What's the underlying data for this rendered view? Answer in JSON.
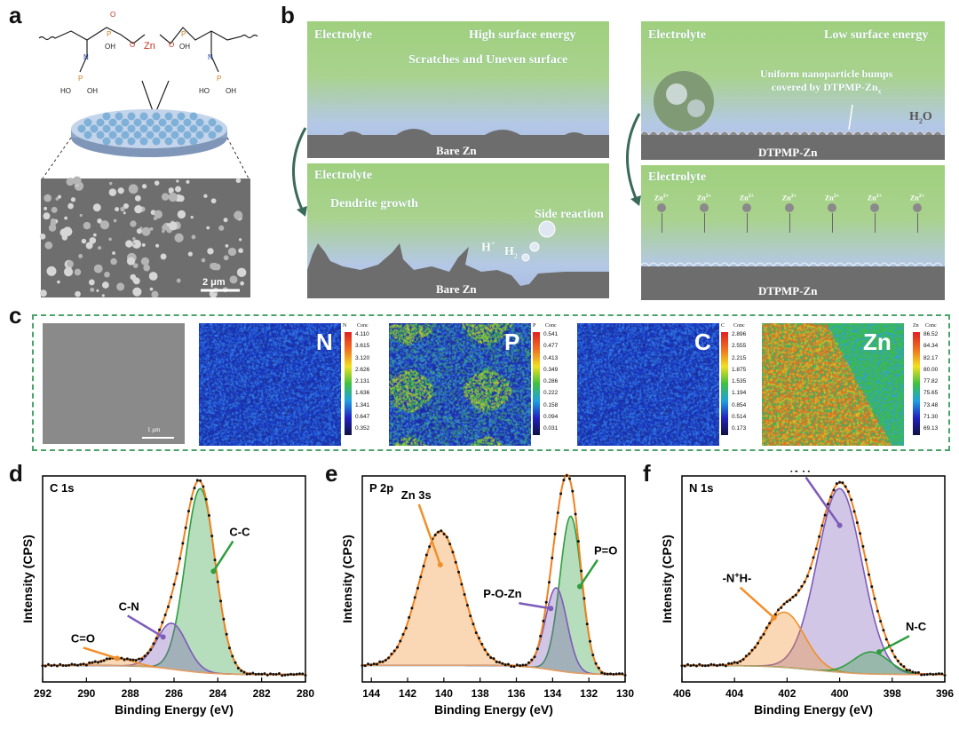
{
  "panels": {
    "a": "a",
    "b": "b",
    "c": "c",
    "d": "d",
    "e": "e",
    "f": "f"
  },
  "panel_a": {
    "molecule_labels": {
      "oh1": "OH",
      "o1": "O",
      "p1": "P",
      "n1": "N",
      "p2": "P",
      "oh2": "HO",
      "oh2b": "OH",
      "o2": "O",
      "zn": "Zn",
      "o3": "O",
      "p3": "P",
      "oh3": "OH",
      "n2": "N",
      "p4": "P",
      "oh4": "HO",
      "oh4b": "OH"
    },
    "scale_bar": "2 μm"
  },
  "panel_b": {
    "top_left": {
      "electrolyte": "Electrolyte",
      "energy": "High surface energy",
      "surface": "Scratches and Uneven surface",
      "substrate": "Bare Zn"
    },
    "bottom_left": {
      "electrolyte": "Electrolyte",
      "dendrite": "Dendrite growth",
      "side": "Side reaction",
      "h_plus": "H",
      "h_plus_sup": "+",
      "h2": "H",
      "h2_sub": "2",
      "substrate": "Bare Zn"
    },
    "top_right": {
      "electrolyte": "Electrolyte",
      "energy": "Low surface energy",
      "bumps_line1": "Uniform nanoparticle bumps",
      "bumps_line2": "covered by DTPMP-Zn",
      "bumps_sub": "x",
      "h2o": "H",
      "h2o_sub": "2",
      "h2o_o": "O",
      "substrate": "DTPMP-Zn"
    },
    "bottom_right": {
      "electrolyte": "Electrolyte",
      "ions": [
        "Zn",
        "Zn",
        "Zn",
        "Zn",
        "Zn",
        "Zn",
        "Zn"
      ],
      "ion_sup": "2+",
      "substrate": "DTPMP-Zn"
    }
  },
  "panel_c": {
    "scale_bar": "1 μm",
    "maps": [
      {
        "element": "N",
        "conc_label": "Conc",
        "cb_title": "N",
        "values": [
          "4.110",
          "3.615",
          "3.120",
          "2.626",
          "2.131",
          "1.636",
          "1.341",
          "0.647",
          "0.352"
        ]
      },
      {
        "element": "P",
        "conc_label": "Conc",
        "cb_title": "P",
        "values": [
          "0.541",
          "0.477",
          "0.413",
          "0.349",
          "0.286",
          "0.222",
          "0.158",
          "0.094",
          "0.031"
        ]
      },
      {
        "element": "C",
        "conc_label": "Conc",
        "cb_title": "C",
        "values": [
          "2.896",
          "2.555",
          "2.215",
          "1.875",
          "1.535",
          "1.194",
          "0.854",
          "0.514",
          "0.173"
        ]
      },
      {
        "element": "Zn",
        "conc_label": "Conc",
        "cb_title": "Zn",
        "values": [
          "86.52",
          "84.34",
          "82.17",
          "80.00",
          "77.82",
          "75.65",
          "73.48",
          "71.30",
          "69.13"
        ]
      }
    ]
  },
  "chart_data": [
    {
      "type": "line",
      "title": "C 1s",
      "xlabel": "Binding Energy (eV)",
      "ylabel": "Intensity (CPS)",
      "xlim": [
        292,
        280
      ],
      "xticks": [
        292,
        290,
        288,
        286,
        284,
        282,
        280
      ],
      "peaks": [
        {
          "name": "C-C",
          "center": 284.8,
          "height": 1.0,
          "fwhm": 1.6,
          "color": "#2e9e3e"
        },
        {
          "name": "C-N",
          "center": 286.1,
          "height": 0.25,
          "fwhm": 1.6,
          "color": "#7d5bb8"
        },
        {
          "name": "C=O",
          "center": 288.6,
          "height": 0.04,
          "fwhm": 1.8,
          "color": "#f0902a"
        }
      ]
    },
    {
      "type": "line",
      "title": "P 2p",
      "xlabel": "Binding Energy (eV)",
      "ylabel": "Intensity (CPS)",
      "xlim": [
        144.5,
        130
      ],
      "xticks": [
        144,
        142,
        140,
        138,
        136,
        134,
        132,
        130
      ],
      "peaks": [
        {
          "name": "P=O",
          "center": 133.0,
          "height": 0.85,
          "fwhm": 1.4,
          "color": "#2e9e3e"
        },
        {
          "name": "P-O-Zn",
          "center": 133.8,
          "height": 0.45,
          "fwhm": 1.4,
          "color": "#7d5bb8"
        },
        {
          "name": "Zn 3s",
          "center": 140.2,
          "height": 0.73,
          "fwhm": 2.8,
          "color": "#f0902a"
        }
      ]
    },
    {
      "type": "line",
      "title": "N 1s",
      "xlabel": "Binding Energy (eV)",
      "ylabel": "Intensity (CPS)",
      "xlim": [
        406,
        396
      ],
      "xticks": [
        406,
        404,
        402,
        400,
        398,
        396
      ],
      "peaks": [
        {
          "name": "N-H",
          "center": 400.0,
          "height": 1.0,
          "fwhm": 2.0,
          "color": "#7d5bb8"
        },
        {
          "name": "-N+H-",
          "center": 402.1,
          "height": 0.3,
          "fwhm": 1.8,
          "color": "#f0902a"
        },
        {
          "name": "N-C",
          "center": 398.8,
          "height": 0.12,
          "fwhm": 1.6,
          "color": "#2e9e3e"
        }
      ]
    }
  ],
  "xps_labels": {
    "d": {
      "core": "C 1s",
      "cc": "C-C",
      "cn": "C-N",
      "co": "C=O"
    },
    "e": {
      "core": "P 2p",
      "po": "P=O",
      "poz": "P-O-Zn",
      "zn3s": "Zn 3s"
    },
    "f": {
      "core": "N 1s",
      "nh": "N-H",
      "nh_plus_pre": "-N",
      "nh_plus_sup": "+",
      "nh_plus_post": "H-",
      "nc": "N-C"
    }
  }
}
